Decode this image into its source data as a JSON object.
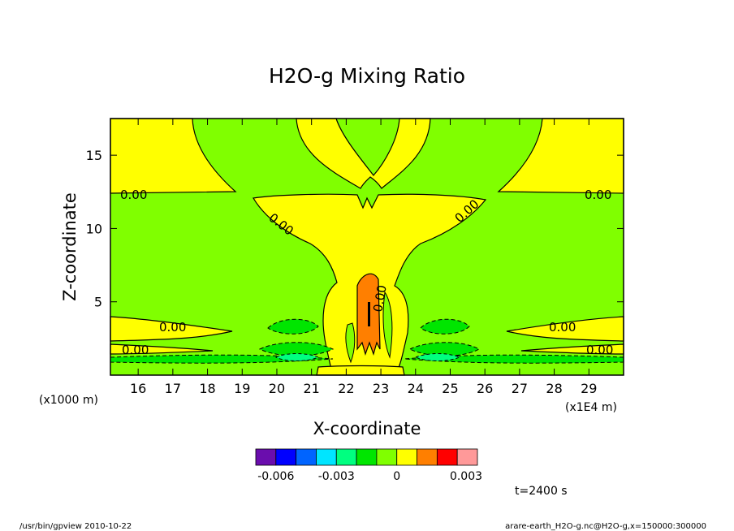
{
  "chart_data": {
    "type": "contour",
    "title": "H2O-g Mixing Ratio",
    "xlabel": "X-coordinate",
    "ylabel": "Z-coordinate",
    "x_unit_label": "(x1E4 m)",
    "y_unit_label": "(x1000 m)",
    "xlim": [
      15.2,
      30.0
    ],
    "ylim": [
      0,
      17.5
    ],
    "xticks": [
      16,
      17,
      18,
      19,
      20,
      21,
      22,
      23,
      24,
      25,
      26,
      27,
      28,
      29
    ],
    "yticks": [
      5,
      10,
      15
    ],
    "contour_labels": [
      "0.00",
      "0.00",
      "0.00",
      "0.00",
      "0.00",
      "0.00",
      "0.00",
      "0.00",
      "0.00"
    ],
    "colorbar": {
      "colors": [
        "#6a0dad",
        "#0000ff",
        "#0064ff",
        "#00e5ff",
        "#00ff80",
        "#00e600",
        "#80ff00",
        "#ffff00",
        "#ff7f00",
        "#ff0000",
        "#ff9999"
      ],
      "tick_labels": [
        "-0.006",
        "-0.003",
        "0",
        "0.003"
      ]
    },
    "time_label": "t=2400 s"
  },
  "footer": {
    "left": "/usr/bin/gpview   2010-10-22",
    "right": "arare-earth_H2O-g.nc@H2O-g,x=150000:300000"
  }
}
